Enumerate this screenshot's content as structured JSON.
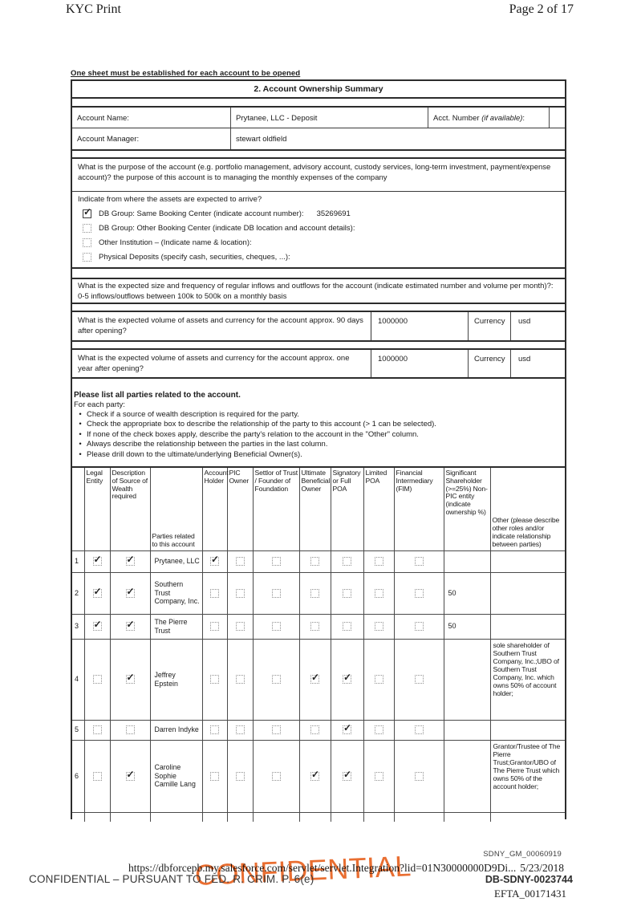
{
  "page_header": {
    "left": "KYC Print",
    "right": "Page 2 of 17"
  },
  "intro_note": "One sheet must be established for each account to be opened",
  "summary": {
    "title": "2. Account Ownership Summary",
    "account_name_label": "Account Name:",
    "account_name_value": "Prytanee, LLC - Deposit",
    "acct_number_label": "Acct. Number ",
    "acct_number_italic": "(if available)",
    "acct_number_suffix": ":",
    "account_manager_label": "Account Manager:",
    "account_manager_value": "stewart oldfield",
    "purpose_text": "What is the purpose of the account (e.g. portfolio management, advisory account, custody services, long-term investment, payment/expense account)?  the purpose of this account is to managing the monthly expenses of the company",
    "assets_origin": {
      "question": "Indicate from where the assets are expected to arrive?",
      "options": [
        {
          "label": "DB Group: Same Booking Center (indicate account number):",
          "value": "35269691",
          "checked": true
        },
        {
          "label": "DB Group: Other Booking Center (indicate DB location and account details):",
          "value": "",
          "checked": false
        },
        {
          "label": "Other Institution – (Indicate name & location):",
          "value": "",
          "checked": false
        },
        {
          "label": "Physical Deposits (specify cash, securities, cheques, ...):",
          "value": "",
          "checked": false
        }
      ]
    },
    "flows_question": "What is the expected size and frequency of regular inflows and outflows for the account (indicate estimated number and volume per month)?:  0-5 inflows/outflows between 100k to 500k on a monthly basis",
    "volume_rows": [
      {
        "question": "What is the expected volume of assets and currency for the account approx. 90 days after opening?",
        "amount": "1000000",
        "currency_label": "Currency",
        "currency_value": "usd"
      },
      {
        "question": "What is the expected volume of assets and currency for the account approx. one year after opening?",
        "amount": "1000000",
        "currency_label": "Currency",
        "currency_value": "usd"
      }
    ]
  },
  "parties_section": {
    "heading": "Please list all parties related to the account.",
    "subheading": "For each party:",
    "bullets": [
      "Check if a source of wealth description is required for the party.",
      "Check the appropriate box to describe the relationship of the party to this account (> 1 can be selected).",
      "If none of the check boxes apply, describe the party's relation to the account in the \"Other\" column.",
      "Always describe the relationship between the parties in the last column.",
      "Please drill down to the ultimate/underlying Beneficial Owner(s)."
    ],
    "table": {
      "headers": [
        "",
        "Legal Entity",
        "Description of Source of Wealth required",
        "Parties related to this account",
        "Account Holder",
        "PIC Owner",
        "Settlor of Trust / Founder of Foundation",
        "Ultimate Beneficial Owner",
        "Signatory or Full POA",
        "Limited POA",
        "Financial Intermediary (FIM)",
        "Significant Shareholder (>=25%) Non-PIC entity (indicate ownership %)",
        "Other (please describe other roles and/or indicate relationship between parties)"
      ],
      "rows": [
        {
          "num": "1",
          "legal_entity": true,
          "sow_required": true,
          "party": "Prytanee, LLC",
          "roles": [
            true,
            false,
            false,
            false,
            false,
            false,
            false
          ],
          "shareholding": "",
          "other": ""
        },
        {
          "num": "2",
          "legal_entity": true,
          "sow_required": true,
          "party": "Southern Trust Company, Inc.",
          "roles": [
            false,
            false,
            false,
            false,
            false,
            false,
            false
          ],
          "shareholding": "50",
          "other": ""
        },
        {
          "num": "3",
          "legal_entity": true,
          "sow_required": true,
          "party": "The Pierre Trust",
          "roles": [
            false,
            false,
            false,
            false,
            false,
            false,
            false
          ],
          "shareholding": "50",
          "other": ""
        },
        {
          "num": "4",
          "legal_entity": false,
          "sow_required": true,
          "party": "Jeffrey Epstein",
          "roles": [
            false,
            false,
            false,
            true,
            true,
            false,
            false
          ],
          "shareholding": "",
          "other": "sole shareholder of Southern Trust Company, Inc.;UBO of Southern Trust Company, Inc. which owns 50% of account holder;"
        },
        {
          "num": "5",
          "legal_entity": false,
          "sow_required": false,
          "party": "Darren Indyke",
          "roles": [
            false,
            false,
            false,
            false,
            true,
            false,
            false
          ],
          "shareholding": "",
          "other": ""
        },
        {
          "num": "6",
          "legal_entity": false,
          "sow_required": true,
          "party": "Caroline Sophie Camille Lang",
          "roles": [
            false,
            false,
            false,
            true,
            true,
            false,
            false
          ],
          "shareholding": "",
          "other": "Grantor/Trustee of The Pierre Trust;Grantor/UBO of The Pierre Trust which owns 50% of the account holder;"
        }
      ],
      "partial_row": {
        "num": "",
        "party": ""
      }
    }
  },
  "footer": {
    "bates_top": "SDNY_GM_00060919",
    "url": "https://dbforcepb.my.salesforce.com/servlet/servlet.Integration?lid=01N30000000D9Di...",
    "date": "5/23/2018",
    "stamp": "CONFIDENTIAL",
    "stamp_color": "#e8611f",
    "confidential_line": "CONFIDENTIAL – PURSUANT TO FED. R. CRIM. P. 6(e)",
    "bates_db": "DB-SDNY-0023744",
    "bates_efta": "EFTA_00171431"
  }
}
